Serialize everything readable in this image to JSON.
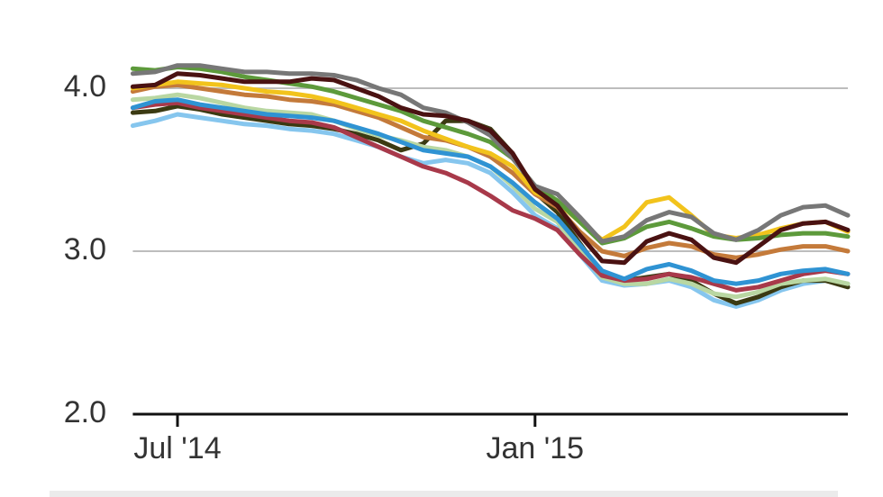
{
  "chart_data": {
    "type": "line",
    "categories": [
      null,
      null,
      "Jul '14",
      null,
      null,
      null,
      null,
      null,
      null,
      null,
      null,
      null,
      null,
      null,
      null,
      null,
      null,
      null,
      "Jan '15",
      null,
      null,
      null,
      null,
      null,
      null,
      null,
      null,
      null,
      null,
      null,
      null,
      null,
      null
    ],
    "ylim": [
      2,
      4.3
    ],
    "yticks": [
      {
        "value": 2,
        "label": "2.0"
      },
      {
        "value": 3,
        "label": "3.0"
      },
      {
        "value": 4,
        "label": "4.0"
      }
    ],
    "grid": true,
    "series": [
      {
        "color": "#86c6ee",
        "values": [
          3.77,
          3.8,
          3.84,
          3.82,
          3.8,
          3.78,
          3.77,
          3.75,
          3.74,
          3.72,
          3.68,
          3.64,
          3.58,
          3.54,
          3.56,
          3.54,
          3.48,
          3.36,
          3.22,
          3.14,
          2.98,
          2.82,
          2.79,
          2.8,
          2.82,
          2.78,
          2.7,
          2.66,
          2.7,
          2.76,
          2.8,
          2.82,
          2.8
        ]
      },
      {
        "color": "#3b3a12",
        "values": [
          3.85,
          3.86,
          3.89,
          3.87,
          3.84,
          3.82,
          3.8,
          3.78,
          3.77,
          3.75,
          3.72,
          3.68,
          3.62,
          3.66,
          3.8,
          3.8,
          3.75,
          3.6,
          3.36,
          3.24,
          3.05,
          2.86,
          2.82,
          2.84,
          2.86,
          2.82,
          2.74,
          2.68,
          2.72,
          2.78,
          2.82,
          2.82,
          2.78
        ]
      },
      {
        "color": "#b9d7a2",
        "values": [
          3.93,
          3.94,
          3.96,
          3.94,
          3.91,
          3.88,
          3.86,
          3.85,
          3.84,
          3.8,
          3.75,
          3.71,
          3.68,
          3.64,
          3.62,
          3.58,
          3.52,
          3.4,
          3.26,
          3.18,
          3.0,
          2.84,
          2.8,
          2.8,
          2.83,
          2.8,
          2.74,
          2.72,
          2.75,
          2.8,
          2.82,
          2.83,
          2.8
        ]
      },
      {
        "color": "#a8394a",
        "values": [
          3.88,
          3.9,
          3.91,
          3.88,
          3.86,
          3.84,
          3.82,
          3.8,
          3.79,
          3.76,
          3.7,
          3.64,
          3.58,
          3.52,
          3.48,
          3.42,
          3.34,
          3.25,
          3.2,
          3.13,
          2.98,
          2.85,
          2.82,
          2.83,
          2.86,
          2.84,
          2.8,
          2.76,
          2.78,
          2.82,
          2.86,
          2.88,
          2.86
        ]
      },
      {
        "color": "#2f93d3",
        "values": [
          3.88,
          3.92,
          3.93,
          3.9,
          3.88,
          3.86,
          3.84,
          3.83,
          3.82,
          3.8,
          3.76,
          3.72,
          3.67,
          3.62,
          3.6,
          3.58,
          3.52,
          3.42,
          3.3,
          3.2,
          3.04,
          2.88,
          2.83,
          2.89,
          2.92,
          2.88,
          2.82,
          2.8,
          2.82,
          2.86,
          2.88,
          2.89,
          2.86
        ]
      },
      {
        "color": "#c47a3a",
        "values": [
          3.98,
          4.01,
          4.02,
          4.0,
          3.98,
          3.96,
          3.95,
          3.93,
          3.92,
          3.9,
          3.86,
          3.82,
          3.76,
          3.7,
          3.68,
          3.64,
          3.58,
          3.48,
          3.35,
          3.27,
          3.12,
          3.0,
          2.97,
          3.02,
          3.05,
          3.03,
          2.98,
          2.96,
          2.98,
          3.01,
          3.03,
          3.03,
          3.0
        ]
      },
      {
        "color": "#f2c31c",
        "values": [
          4.0,
          4.02,
          4.04,
          4.03,
          4.02,
          4.0,
          3.98,
          3.97,
          3.95,
          3.92,
          3.88,
          3.84,
          3.8,
          3.74,
          3.69,
          3.64,
          3.6,
          3.52,
          3.36,
          3.3,
          3.18,
          3.07,
          3.15,
          3.3,
          3.33,
          3.22,
          3.1,
          3.08,
          3.1,
          3.14,
          3.17,
          3.18,
          3.12
        ]
      },
      {
        "color": "#5d9a3b",
        "values": [
          4.12,
          4.11,
          4.13,
          4.12,
          4.1,
          4.07,
          4.05,
          4.03,
          4.01,
          3.98,
          3.94,
          3.9,
          3.86,
          3.8,
          3.76,
          3.72,
          3.67,
          3.57,
          3.4,
          3.31,
          3.18,
          3.05,
          3.08,
          3.15,
          3.18,
          3.14,
          3.09,
          3.07,
          3.08,
          3.1,
          3.11,
          3.11,
          3.09
        ]
      },
      {
        "color": "#777777",
        "values": [
          4.09,
          4.1,
          4.14,
          4.14,
          4.12,
          4.1,
          4.1,
          4.09,
          4.09,
          4.08,
          4.05,
          4.0,
          3.96,
          3.88,
          3.85,
          3.79,
          3.71,
          3.57,
          3.4,
          3.35,
          3.21,
          3.06,
          3.09,
          3.19,
          3.24,
          3.21,
          3.11,
          3.07,
          3.13,
          3.22,
          3.27,
          3.28,
          3.22
        ]
      },
      {
        "color": "#4a1212",
        "values": [
          4.01,
          4.02,
          4.09,
          4.08,
          4.06,
          4.04,
          4.04,
          4.04,
          4.06,
          4.05,
          4.0,
          3.95,
          3.88,
          3.84,
          3.83,
          3.8,
          3.74,
          3.6,
          3.38,
          3.28,
          3.1,
          2.94,
          2.93,
          3.06,
          3.11,
          3.07,
          2.96,
          2.93,
          3.03,
          3.13,
          3.17,
          3.18,
          3.13
        ]
      }
    ]
  }
}
